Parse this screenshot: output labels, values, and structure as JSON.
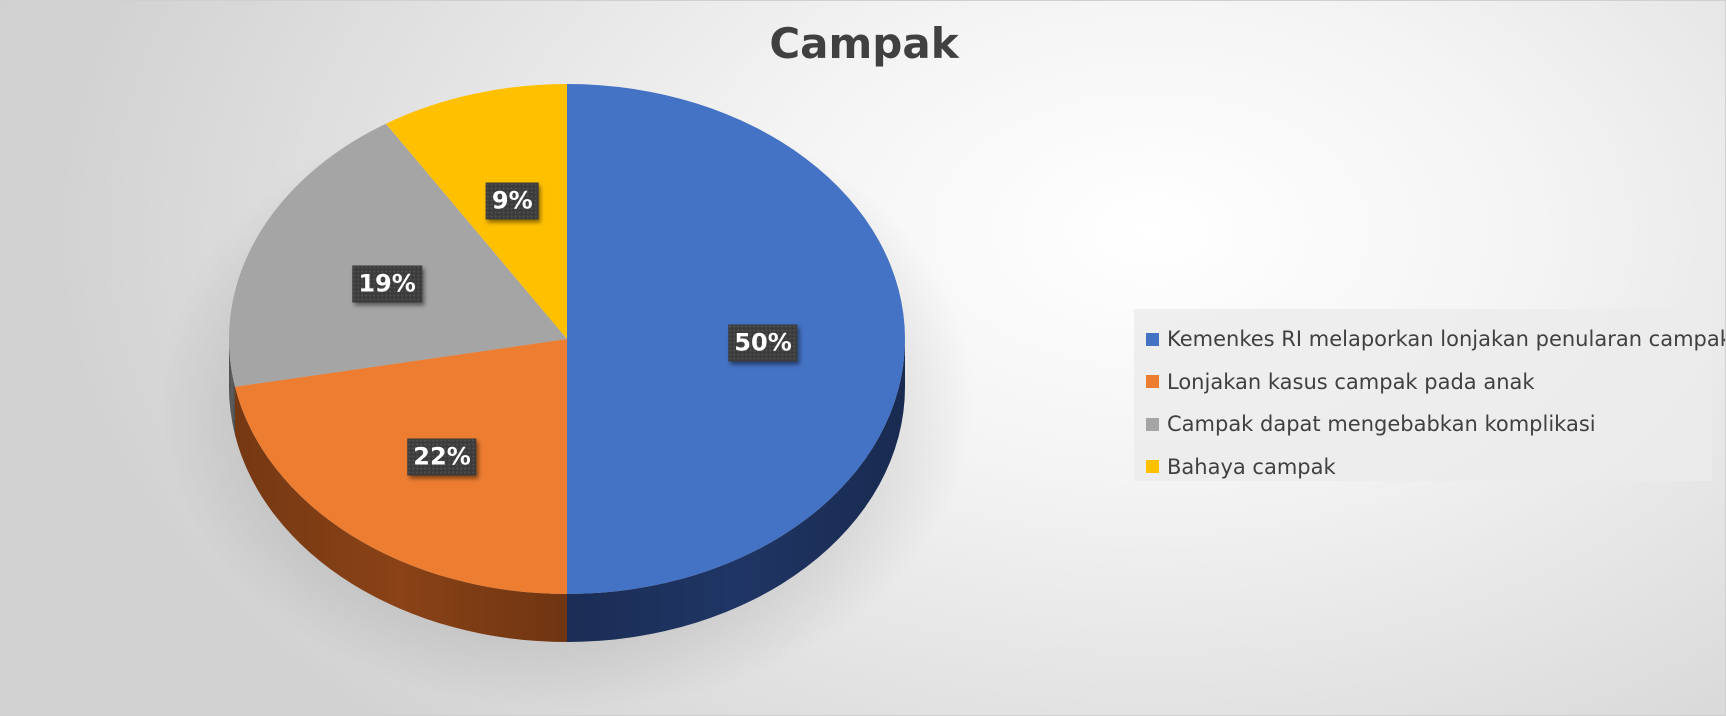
{
  "chart_data": {
    "type": "pie",
    "title": "Campak",
    "slices": [
      {
        "label": "Kemenkes RI melaporkan lonjakan penularan campak",
        "value": 50,
        "display": "50%",
        "color": "#4472C4",
        "side_color": "#1F3564"
      },
      {
        "label": "Lonjakan kasus campak pada anak",
        "value": 22,
        "display": "22%",
        "color": "#ED7D31",
        "side_color": "#8A4216"
      },
      {
        "label": "Campak dapat mengebabkan komplikasi",
        "value": 19,
        "display": "19%",
        "color": "#A5A5A5",
        "side_color": "#5E5E5E"
      },
      {
        "label": "Bahaya campak",
        "value": 9,
        "display": "9%",
        "color": "#FFC000",
        "side_color": "#8F6B00"
      }
    ],
    "start": "12 o'clock",
    "direction": "clockwise",
    "style": "3d",
    "legend_position": "right",
    "data_labels": "percent"
  },
  "legend": {
    "items": [
      {
        "label": "Kemenkes RI melaporkan lonjakan penularan campak",
        "color": "#4472C4"
      },
      {
        "label": "Lonjakan kasus campak pada anak",
        "color": "#ED7D31"
      },
      {
        "label": "Campak dapat mengebabkan komplikasi",
        "color": "#A5A5A5"
      },
      {
        "label": "Bahaya campak",
        "color": "#FFC000"
      }
    ]
  }
}
